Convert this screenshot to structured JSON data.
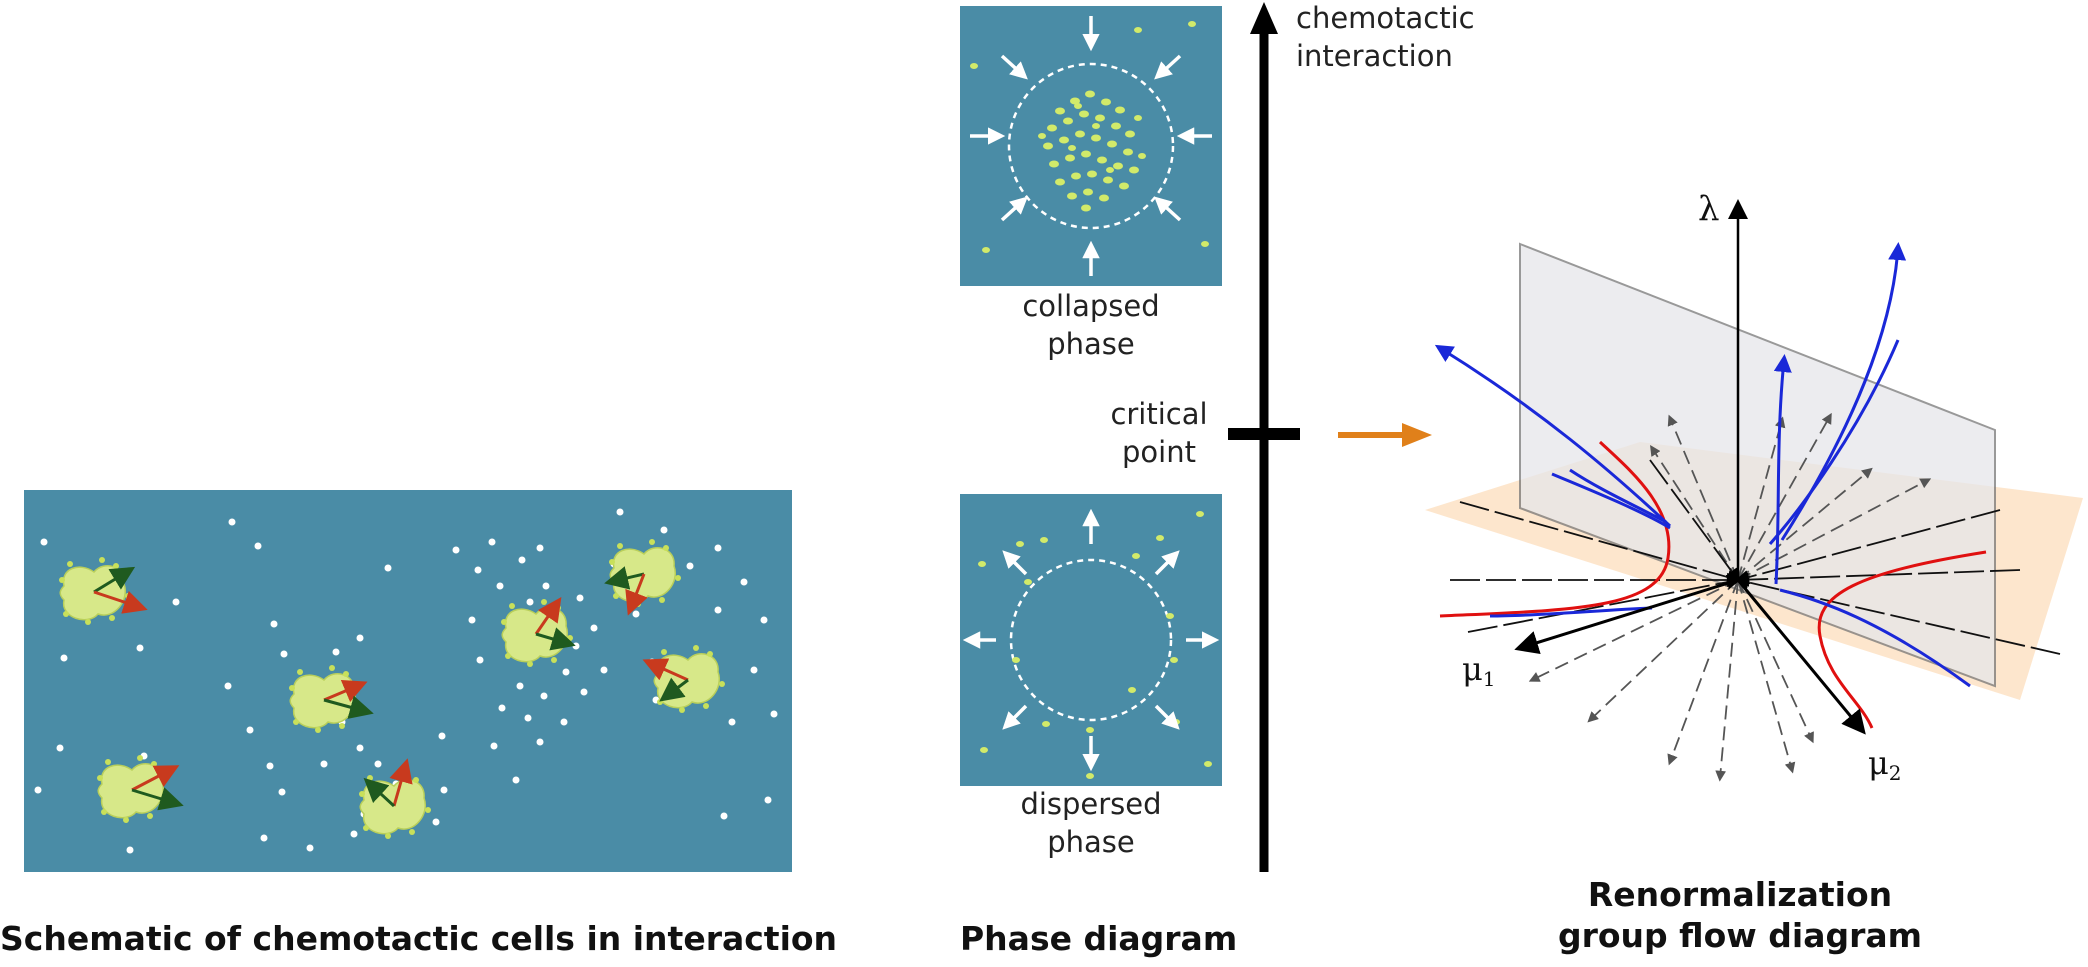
{
  "panels": {
    "schematic": {
      "caption": "Schematic of chemotactic cells in interaction"
    },
    "phase": {
      "caption": "Phase diagram",
      "axis_label": "chemotactic\ninteraction",
      "critical_label": "critical\npoint",
      "collapsed_label": "collapsed\nphase",
      "dispersed_label": "dispersed\nphase"
    },
    "rg": {
      "caption": "Renormalization\ngroup flow diagram",
      "axis_lambda": "λ",
      "axis_mu1": "μ",
      "axis_mu1_sub": "1",
      "axis_mu2": "μ",
      "axis_mu2_sub": "2"
    }
  },
  "colors": {
    "panel_bg": "#4a8ca6",
    "cell_fill": "#d7e889",
    "cell_dot": "#c8e05a",
    "arrow_red": "#c83a1e",
    "arrow_green": "#1f5a1f",
    "orange_arrow": "#e0801a",
    "plane_grey": "#e6e6ea",
    "plane_orange": "#fde3c8",
    "flow_blue": "#1a28d8",
    "separatrix_red": "#e01010"
  },
  "icons": [
    "inward-arrow-icon",
    "outward-arrow-icon",
    "orange-right-arrow-icon"
  ]
}
